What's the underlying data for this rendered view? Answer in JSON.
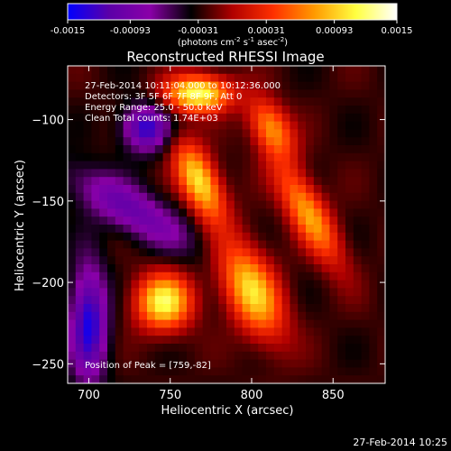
{
  "chart_data": {
    "type": "heatmap",
    "title": "Reconstructed RHESSI Image",
    "xlabel": "Heliocentric X (arcsec)",
    "ylabel": "Heliocentric Y (arcsec)",
    "xlim": [
      687,
      882
    ],
    "ylim": [
      -262,
      -67
    ],
    "xticks": [
      700,
      750,
      800,
      850
    ],
    "yticks": [
      -100,
      -150,
      -200,
      -250
    ],
    "colorbar": {
      "min": -0.0015,
      "max": 0.0015,
      "ticks": [
        -0.0015,
        -0.00093,
        -0.00031,
        0.00031,
        0.00093,
        0.0015
      ],
      "tick_labels": [
        "-0.0015",
        "-0.00093",
        "-0.00031",
        "0.00031",
        "0.00093",
        "0.0015"
      ],
      "units_label": "(photons cm-2 s-1 asec-2)",
      "colormap": [
        "#0000ff",
        "#5b00a8",
        "#8a00a8",
        "#000000",
        "#b00000",
        "#ff3000",
        "#ff9a00",
        "#ffff40",
        "#ffffff"
      ]
    },
    "annotations": [
      "27-Feb-2014 10:11:04.000 to 10:12:36.000",
      "Detectors: 3F 5F 6F 7F 8F 9F, Att 0",
      "Energy Range: 25.0 - 50.0 keV",
      "Clean    Total counts: 1.74E+03",
      "Position of Peak = [759,-82]"
    ],
    "sources": [
      {
        "x": 767,
        "y": -84,
        "amp": 1.0,
        "sx": 14,
        "sy": 8,
        "rot": 0
      },
      {
        "x": 746,
        "y": -212,
        "amp": 0.95,
        "sx": 12,
        "sy": 12,
        "rot": 0
      },
      {
        "x": 768,
        "y": -138,
        "amp": 0.9,
        "sx": 8,
        "sy": 18,
        "rot": 25
      },
      {
        "x": 800,
        "y": -205,
        "amp": 0.85,
        "sx": 11,
        "sy": 22,
        "rot": 25
      },
      {
        "x": 835,
        "y": -158,
        "amp": 0.7,
        "sx": 8,
        "sy": 25,
        "rot": 30
      },
      {
        "x": 812,
        "y": -105,
        "amp": 0.65,
        "sx": 8,
        "sy": 14,
        "rot": 30
      },
      {
        "x": 725,
        "y": -155,
        "amp": -0.5,
        "sx": 30,
        "sy": 10,
        "rot": -30
      },
      {
        "x": 700,
        "y": -225,
        "amp": -0.75,
        "sx": 8,
        "sy": 25,
        "rot": 0
      },
      {
        "x": 735,
        "y": -105,
        "amp": -0.7,
        "sx": 10,
        "sy": 10,
        "rot": 0
      }
    ]
  },
  "footer": {
    "timestamp": "27-Feb-2014 10:25"
  }
}
